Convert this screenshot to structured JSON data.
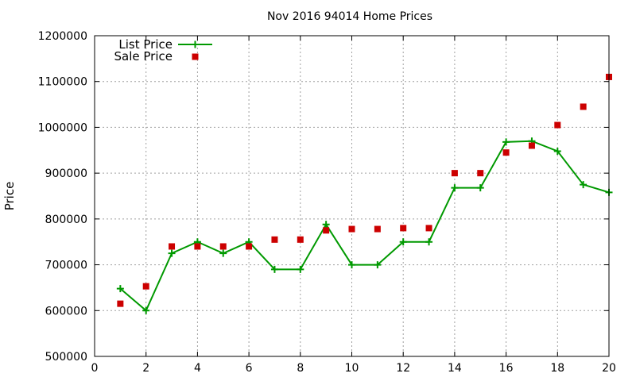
{
  "chart_data": {
    "type": "line",
    "title": "Nov 2016 94014 Home Prices",
    "xlabel": "",
    "ylabel": "Price",
    "xlim": [
      0,
      20
    ],
    "ylim": [
      500000,
      1200000
    ],
    "xticks": [
      0,
      2,
      4,
      6,
      8,
      10,
      12,
      14,
      16,
      18,
      20
    ],
    "yticks": [
      500000,
      600000,
      700000,
      800000,
      900000,
      1000000,
      1100000,
      1200000
    ],
    "grid": true,
    "legend_position": "top-left",
    "series": [
      {
        "name": "List Price",
        "style": "line+cross",
        "color": "#009900",
        "x": [
          1,
          2,
          3,
          4,
          5,
          6,
          7,
          8,
          9,
          10,
          11,
          12,
          13,
          14,
          15,
          16,
          17,
          18,
          19,
          20
        ],
        "y": [
          648000,
          600000,
          725000,
          750000,
          725000,
          750000,
          690000,
          690000,
          788000,
          700000,
          700000,
          750000,
          750000,
          868000,
          868000,
          968000,
          970000,
          948000,
          875000,
          858000
        ]
      },
      {
        "name": "Sale Price",
        "style": "square",
        "color": "#cc0000",
        "x": [
          1,
          2,
          3,
          4,
          5,
          6,
          7,
          8,
          9,
          10,
          11,
          12,
          13,
          14,
          15,
          16,
          17,
          18,
          19,
          20
        ],
        "y": [
          615000,
          653000,
          740000,
          740000,
          740000,
          740000,
          755000,
          755000,
          775000,
          778000,
          778000,
          780000,
          780000,
          900000,
          900000,
          945000,
          960000,
          1005000,
          1045000,
          1110000
        ]
      }
    ]
  }
}
